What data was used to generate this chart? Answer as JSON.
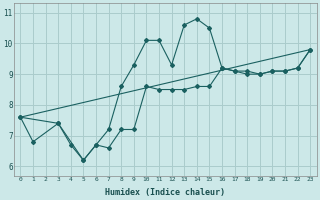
{
  "bg_color": "#cce8e8",
  "grid_color": "#aacccc",
  "line_color": "#1a6060",
  "xlabel": "Humidex (Indice chaleur)",
  "xlim": [
    -0.5,
    23.5
  ],
  "ylim": [
    5.7,
    11.3
  ],
  "yticks": [
    6,
    7,
    8,
    9,
    10,
    11
  ],
  "xticks": [
    0,
    1,
    2,
    3,
    4,
    5,
    6,
    7,
    8,
    9,
    10,
    11,
    12,
    13,
    14,
    15,
    16,
    17,
    18,
    19,
    20,
    21,
    22,
    23
  ],
  "line1_x": [
    0,
    1,
    3,
    4,
    5,
    6,
    7,
    8,
    9,
    10,
    11,
    12,
    13,
    14,
    15,
    16,
    17,
    18,
    19,
    20,
    21,
    22,
    23
  ],
  "line1_y": [
    7.6,
    6.8,
    7.4,
    6.7,
    6.2,
    6.7,
    6.6,
    7.2,
    7.2,
    8.6,
    8.5,
    8.5,
    8.5,
    8.6,
    8.6,
    9.2,
    9.1,
    9.0,
    9.0,
    9.1,
    9.1,
    9.2,
    9.8
  ],
  "line2_x": [
    0,
    3,
    5,
    6,
    7,
    8,
    9,
    10,
    11,
    12,
    13,
    14,
    15,
    16,
    17,
    18,
    19,
    20,
    21,
    22,
    23
  ],
  "line2_y": [
    7.6,
    7.4,
    6.2,
    6.7,
    7.2,
    8.6,
    9.3,
    10.1,
    10.1,
    9.3,
    10.6,
    10.8,
    10.5,
    9.2,
    9.1,
    9.1,
    9.0,
    9.1,
    9.1,
    9.2,
    9.8
  ],
  "line3_x": [
    0,
    23
  ],
  "line3_y": [
    7.6,
    9.8
  ]
}
